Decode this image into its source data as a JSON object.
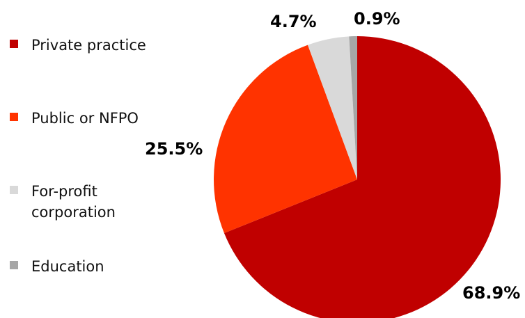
{
  "chart_data": {
    "type": "pie",
    "categories": [
      "Private practice",
      "Public or NFPO",
      "For-profit corporation",
      "Education"
    ],
    "values": [
      68.9,
      25.5,
      4.7,
      0.9
    ],
    "value_labels": [
      "68.9%",
      "25.5%",
      "4.7%",
      "0.9%"
    ],
    "colors": [
      "#c00000",
      "#ff3300",
      "#d9d9d9",
      "#a6a6a6"
    ]
  }
}
